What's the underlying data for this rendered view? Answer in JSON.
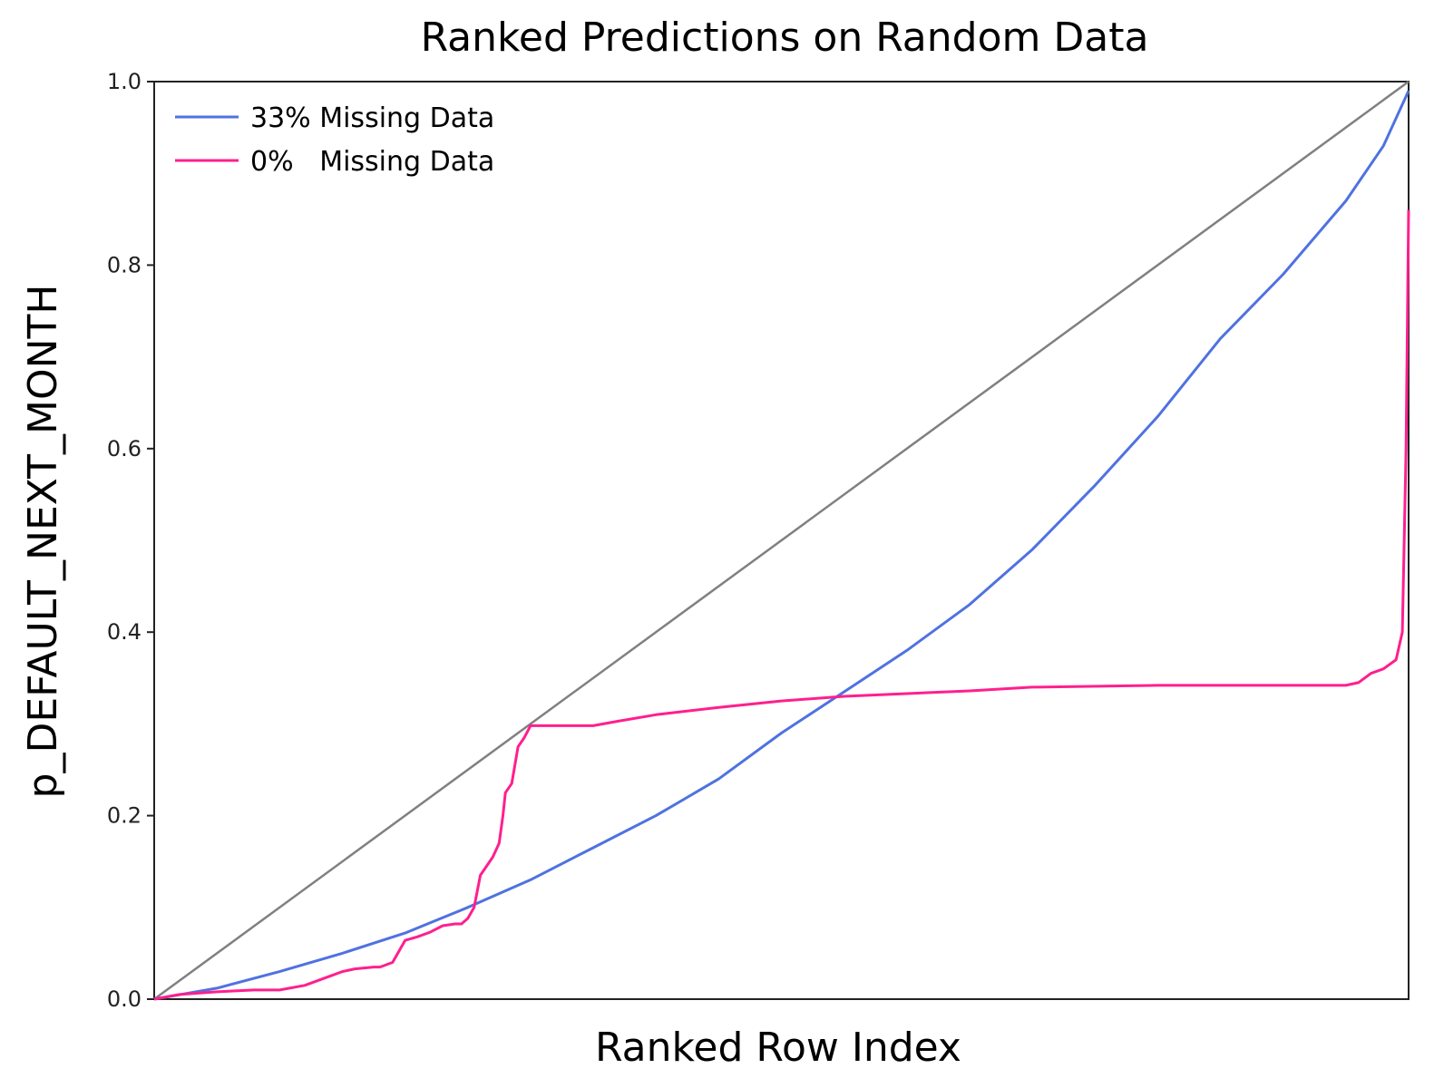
{
  "chart_data": {
    "type": "line",
    "title": "Ranked Predictions on Random Data",
    "xlabel": "Ranked Row Index",
    "ylabel": "p_DEFAULT_NEXT_MONTH",
    "xlim": [
      0,
      1
    ],
    "ylim": [
      0,
      1
    ],
    "yticks": [
      "0.0",
      "0.2",
      "0.4",
      "0.6",
      "0.8",
      "1.0"
    ],
    "grid": false,
    "legend_position": "top-left",
    "reference_line": {
      "x": [
        0,
        1
      ],
      "y": [
        0,
        1
      ],
      "color": "#808080"
    },
    "series": [
      {
        "name": "33% Missing Data",
        "color": "#4f72e0",
        "x": [
          0.0,
          0.05,
          0.1,
          0.15,
          0.2,
          0.25,
          0.3,
          0.35,
          0.4,
          0.45,
          0.5,
          0.55,
          0.6,
          0.65,
          0.7,
          0.75,
          0.8,
          0.85,
          0.9,
          0.95,
          0.98,
          1.0
        ],
        "y": [
          0.0,
          0.012,
          0.03,
          0.05,
          0.072,
          0.1,
          0.13,
          0.165,
          0.2,
          0.24,
          0.29,
          0.335,
          0.38,
          0.43,
          0.49,
          0.56,
          0.635,
          0.72,
          0.79,
          0.87,
          0.93,
          0.99
        ]
      },
      {
        "name": "0%   Missing Data",
        "color": "#ff1f8e",
        "x": [
          0.0,
          0.02,
          0.05,
          0.08,
          0.1,
          0.12,
          0.14,
          0.15,
          0.16,
          0.175,
          0.18,
          0.19,
          0.2,
          0.21,
          0.22,
          0.23,
          0.24,
          0.245,
          0.25,
          0.255,
          0.26,
          0.27,
          0.275,
          0.278,
          0.28,
          0.285,
          0.29,
          0.295,
          0.3,
          0.35,
          0.37,
          0.4,
          0.45,
          0.5,
          0.55,
          0.6,
          0.65,
          0.7,
          0.8,
          0.9,
          0.95,
          0.96,
          0.97,
          0.98,
          0.99,
          0.995,
          0.998,
          1.0
        ],
        "y": [
          0.0,
          0.005,
          0.008,
          0.01,
          0.01,
          0.015,
          0.025,
          0.03,
          0.033,
          0.035,
          0.035,
          0.04,
          0.064,
          0.068,
          0.073,
          0.08,
          0.082,
          0.082,
          0.088,
          0.1,
          0.135,
          0.155,
          0.17,
          0.2,
          0.225,
          0.235,
          0.275,
          0.285,
          0.298,
          0.298,
          0.303,
          0.31,
          0.318,
          0.325,
          0.33,
          0.333,
          0.336,
          0.34,
          0.342,
          0.342,
          0.342,
          0.345,
          0.355,
          0.36,
          0.37,
          0.4,
          0.6,
          0.86
        ]
      }
    ]
  }
}
